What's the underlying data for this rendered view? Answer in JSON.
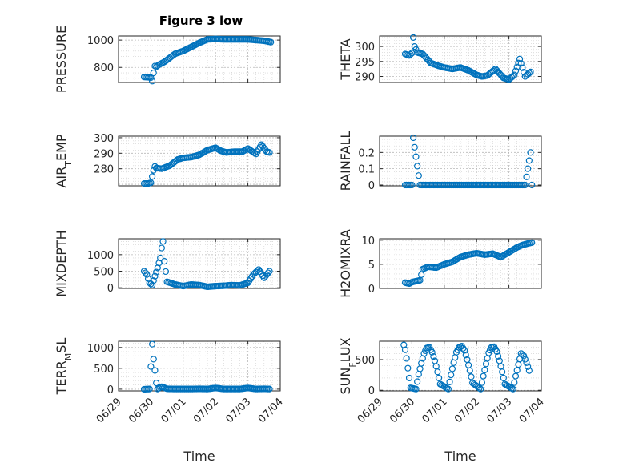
{
  "figure": {
    "title": "Figure 3 low",
    "marker_color": "#0072BD",
    "grid_color": "#b0b0b0",
    "axis_color": "#262626"
  },
  "chart_data": [
    {
      "type": "scatter",
      "ylabel": "PRESSURE",
      "xlabel": "",
      "xlim": [
        "06/29",
        "07/04"
      ],
      "ylim": [
        690,
        1030
      ],
      "yticks": [
        800,
        1000
      ],
      "ytick_labels": [
        "800",
        "1000"
      ],
      "grid": true,
      "x": [
        "06/29 19:00",
        "06/29 22:00",
        "06/30 00:00",
        "06/30 01:00",
        "06/30 02:00",
        "06/30 03:00",
        "06/30 04:00",
        "06/30 06:00",
        "06/30 10:00",
        "06/30 14:00",
        "06/30 18:00",
        "07/01 00:00",
        "07/01 06:00",
        "07/01 12:00",
        "07/01 18:00",
        "07/02 00:00",
        "07/02 06:00",
        "07/02 12:00",
        "07/02 18:00",
        "07/03 00:00",
        "07/03 06:00",
        "07/03 12:00",
        "07/03 17:00"
      ],
      "y": [
        730,
        728,
        725,
        700,
        760,
        810,
        805,
        820,
        840,
        870,
        900,
        920,
        950,
        980,
        1005,
        1008,
        1005,
        1005,
        1005,
        1005,
        1000,
        995,
        985
      ]
    },
    {
      "type": "scatter",
      "ylabel": "THETA",
      "xlabel": "",
      "xlim": [
        "06/29",
        "07/04"
      ],
      "ylim": [
        288,
        303.5
      ],
      "yticks": [
        290,
        295,
        300
      ],
      "ytick_labels": [
        "290",
        "295",
        "300"
      ],
      "grid": true,
      "x": [
        "06/29 19:00",
        "06/29 22:00",
        "06/30 00:00",
        "06/30 01:00",
        "06/30 02:00",
        "06/30 04:00",
        "06/30 08:00",
        "06/30 14:00",
        "06/30 20:00",
        "07/01 00:00",
        "07/01 06:00",
        "07/01 12:00",
        "07/01 18:00",
        "07/02 00:00",
        "07/02 04:00",
        "07/02 08:00",
        "07/02 14:00",
        "07/02 20:00",
        "07/03 00:00",
        "07/03 04:00",
        "07/03 08:00",
        "07/03 12:00",
        "07/03 16:00"
      ],
      "y": [
        297.5,
        297,
        297.8,
        303,
        300,
        298,
        297.5,
        294.5,
        293.5,
        293,
        292.5,
        293,
        292,
        290.5,
        290,
        290.3,
        292.5,
        289.5,
        289,
        290.5,
        295.8,
        290,
        291.5
      ]
    },
    {
      "type": "scatter",
      "ylabel": "AIR_TEMP",
      "xlabel": "",
      "xlim": [
        "06/29",
        "07/04"
      ],
      "ylim": [
        269,
        301
      ],
      "yticks": [
        280,
        290,
        300
      ],
      "ytick_labels": [
        "280",
        "290",
        "300"
      ],
      "grid": true,
      "x": [
        "06/29 19:00",
        "06/29 22:00",
        "06/30 00:00",
        "06/30 02:00",
        "06/30 03:00",
        "06/30 04:00",
        "06/30 08:00",
        "06/30 14:00",
        "06/30 20:00",
        "07/01 00:00",
        "07/01 06:00",
        "07/01 12:00",
        "07/01 18:00",
        "07/02 00:00",
        "07/02 04:00",
        "07/02 08:00",
        "07/02 14:00",
        "07/02 20:00",
        "07/03 00:00",
        "07/03 06:00",
        "07/03 10:00",
        "07/03 14:00",
        "07/03 16:00"
      ],
      "y": [
        270.5,
        270.5,
        271,
        279,
        281.5,
        280.5,
        280,
        282,
        286,
        287,
        287.5,
        289,
        292,
        293.5,
        291.5,
        290.5,
        291,
        291,
        293,
        289.5,
        295.5,
        291,
        290.5
      ]
    },
    {
      "type": "scatter",
      "ylabel": "RAINFALL",
      "xlabel": "",
      "xlim": [
        "06/29",
        "07/04"
      ],
      "ylim": [
        -0.005,
        0.3
      ],
      "yticks": [
        0,
        0.1,
        0.2
      ],
      "ytick_labels": [
        "0",
        "0.1",
        "0.2"
      ],
      "grid": true,
      "x": [
        "06/29 19:00",
        "06/30 00:00",
        "06/30 01:00",
        "06/30 06:00",
        "06/30 12:00",
        "06/30 18:00",
        "07/01 00:00",
        "07/01 06:00",
        "07/01 12:00",
        "07/01 18:00",
        "07/02 00:00",
        "07/02 06:00",
        "07/02 12:00",
        "07/02 18:00",
        "07/03 00:00",
        "07/03 06:00",
        "07/03 12:00",
        "07/03 16:00",
        "07/03 17:00"
      ],
      "y": [
        0,
        0,
        0.29,
        0,
        0,
        0,
        0,
        0,
        0,
        0,
        0,
        0,
        0,
        0,
        0,
        0,
        0,
        0.2,
        0
      ]
    },
    {
      "type": "scatter",
      "ylabel": "MIXDEPTH",
      "xlabel": "",
      "xlim": [
        "06/29",
        "07/04"
      ],
      "ylim": [
        -20,
        1480
      ],
      "yticks": [
        0,
        500,
        1000
      ],
      "ytick_labels": [
        "0",
        "500",
        "1000"
      ],
      "grid": true,
      "x": [
        "06/29 19:00",
        "06/29 21:00",
        "06/29 23:00",
        "06/30 01:00",
        "06/30 03:00",
        "06/30 05:00",
        "06/30 07:00",
        "06/30 08:00",
        "06/30 09:00",
        "06/30 10:00",
        "06/30 12:00",
        "06/30 18:00",
        "07/01 00:00",
        "07/01 06:00",
        "07/01 12:00",
        "07/01 18:00",
        "07/02 00:00",
        "07/02 06:00",
        "07/02 12:00",
        "07/02 18:00",
        "07/03 00:00",
        "07/03 04:00",
        "07/03 08:00",
        "07/03 12:00",
        "07/03 16:00"
      ],
      "y": [
        500,
        400,
        150,
        80,
        350,
        600,
        900,
        1200,
        1400,
        800,
        180,
        100,
        50,
        100,
        80,
        30,
        50,
        60,
        80,
        70,
        150,
        400,
        550,
        300,
        500
      ]
    },
    {
      "type": "scatter",
      "ylabel": "H2OMIXRA",
      "xlabel": "",
      "xlim": [
        "06/29",
        "07/04"
      ],
      "ylim": [
        0,
        10.3
      ],
      "yticks": [
        0,
        5,
        10
      ],
      "ytick_labels": [
        "0",
        "5",
        "10"
      ],
      "grid": true,
      "x": [
        "06/29 19:00",
        "06/29 22:00",
        "06/30 00:00",
        "06/30 03:00",
        "06/30 06:00",
        "06/30 08:00",
        "06/30 12:00",
        "06/30 18:00",
        "07/01 00:00",
        "07/01 06:00",
        "07/01 12:00",
        "07/01 18:00",
        "07/02 00:00",
        "07/02 06:00",
        "07/02 12:00",
        "07/02 18:00",
        "07/03 00:00",
        "07/03 06:00",
        "07/03 10:00",
        "07/03 14:00",
        "07/03 17:00"
      ],
      "y": [
        1.2,
        1.0,
        1.3,
        1.5,
        1.7,
        4.0,
        4.5,
        4.3,
        5.0,
        5.5,
        6.5,
        7.0,
        7.3,
        7.0,
        7.2,
        6.5,
        7.5,
        8.5,
        9.0,
        9.3,
        9.5
      ]
    },
    {
      "type": "scatter",
      "ylabel": "TERR_MSL",
      "xlabel": "Time",
      "xlim": [
        "06/29",
        "07/04"
      ],
      "ylim": [
        -40,
        1150
      ],
      "yticks": [
        0,
        500,
        1000
      ],
      "ytick_labels": [
        "0",
        "500",
        "1000"
      ],
      "grid": true,
      "x": [
        "06/29 19:00",
        "06/29 23:00",
        "06/30 01:00",
        "06/30 02:00",
        "06/30 03:00",
        "06/30 04:00",
        "06/30 05:00",
        "06/30 08:00",
        "06/30 12:00",
        "06/30 18:00",
        "07/01 00:00",
        "07/01 06:00",
        "07/01 12:00",
        "07/01 18:00",
        "07/02 00:00",
        "07/02 06:00",
        "07/02 12:00",
        "07/02 18:00",
        "07/03 00:00",
        "07/03 06:00",
        "07/03 12:00",
        "07/03 16:00"
      ],
      "y": [
        0,
        5,
        1080,
        720,
        450,
        150,
        5,
        60,
        10,
        5,
        5,
        5,
        10,
        5,
        30,
        5,
        5,
        5,
        30,
        5,
        10,
        5
      ],
      "xticks": [
        "06/29",
        "06/30",
        "07/01",
        "07/02",
        "07/03",
        "07/04"
      ]
    },
    {
      "type": "scatter",
      "ylabel": "SUN_FLUX",
      "xlabel": "Time",
      "xlim": [
        "06/29",
        "07/04"
      ],
      "ylim": [
        -10,
        800
      ],
      "yticks": [
        0,
        500
      ],
      "ytick_labels": [
        "0",
        "500"
      ],
      "grid": true,
      "x": [
        "06/29 18:00",
        "06/29 19:00",
        "06/29 20:00",
        "06/29 21:00",
        "06/29 22:00",
        "06/29 23:00",
        "06/30 03:00",
        "06/30 05:00",
        "06/30 07:00",
        "06/30 09:00",
        "06/30 11:00",
        "06/30 13:00",
        "06/30 15:00",
        "06/30 17:00",
        "06/30 19:00",
        "06/30 21:00",
        "07/01 03:00",
        "07/01 05:00",
        "07/01 07:00",
        "07/01 09:00",
        "07/01 11:00",
        "07/01 13:00",
        "07/01 15:00",
        "07/01 17:00",
        "07/01 19:00",
        "07/01 21:00",
        "07/02 03:00",
        "07/02 05:00",
        "07/02 07:00",
        "07/02 09:00",
        "07/02 11:00",
        "07/02 13:00",
        "07/02 15:00",
        "07/02 17:00",
        "07/02 19:00",
        "07/02 21:00",
        "07/03 03:00",
        "07/03 05:00",
        "07/03 07:00",
        "07/03 09:00",
        "07/03 11:00",
        "07/03 13:00",
        "07/03 15:00"
      ],
      "y": [
        740,
        660,
        520,
        360,
        200,
        40,
        20,
        260,
        440,
        600,
        690,
        700,
        620,
        480,
        300,
        100,
        20,
        250,
        450,
        620,
        700,
        720,
        650,
        500,
        320,
        120,
        20,
        230,
        430,
        610,
        700,
        710,
        630,
        480,
        300,
        100,
        20,
        230,
        420,
        600,
        560,
        450,
        320
      ],
      "xticks": [
        "06/29",
        "06/30",
        "07/01",
        "07/02",
        "07/03",
        "07/04"
      ]
    }
  ]
}
